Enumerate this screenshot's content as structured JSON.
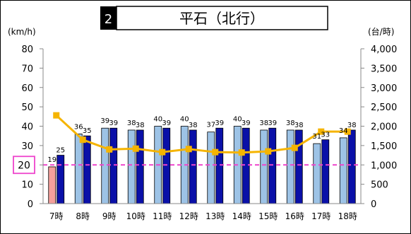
{
  "title": {
    "number": "2",
    "text": "平石（北行）"
  },
  "units": {
    "left": "(km/h)",
    "right": "(台/時)"
  },
  "chart_data": {
    "type": "bar",
    "categories": [
      "7時",
      "8時",
      "9時",
      "10時",
      "11時",
      "12時",
      "13時",
      "14時",
      "15時",
      "16時",
      "17時",
      "18時"
    ],
    "y_left_lim": [
      0,
      80
    ],
    "y_left_ticks": [
      "0",
      "10",
      "20",
      "30",
      "40",
      "50",
      "60",
      "70",
      "80"
    ],
    "y_right_lim": [
      0,
      4000
    ],
    "y_right_ticks": [
      "0",
      "500",
      "1,000",
      "1,500",
      "2,000",
      "2,500",
      "3,000",
      "3,500",
      "4,000"
    ],
    "series": [
      {
        "kind": "bar",
        "values": [
          19,
          36,
          39,
          38,
          40,
          40,
          37,
          40,
          38,
          38,
          31,
          34
        ],
        "color": "#9dc3e6",
        "highlight": {
          "index": 0,
          "color": "#f4a09c"
        }
      },
      {
        "kind": "bar",
        "values": [
          25,
          35,
          39,
          38,
          39,
          38,
          39,
          39,
          39,
          38,
          33,
          38
        ],
        "color": "#0a10a8"
      },
      {
        "kind": "line",
        "axis": "right",
        "values": [
          2280,
          1650,
          1400,
          1420,
          1330,
          1410,
          1330,
          1320,
          1350,
          1440,
          1860,
          1860
        ],
        "color": "#f5b400"
      }
    ],
    "reference_line": {
      "value": 20,
      "label": "20",
      "color": "#ee44cc"
    },
    "grid": false,
    "legend": "none"
  }
}
